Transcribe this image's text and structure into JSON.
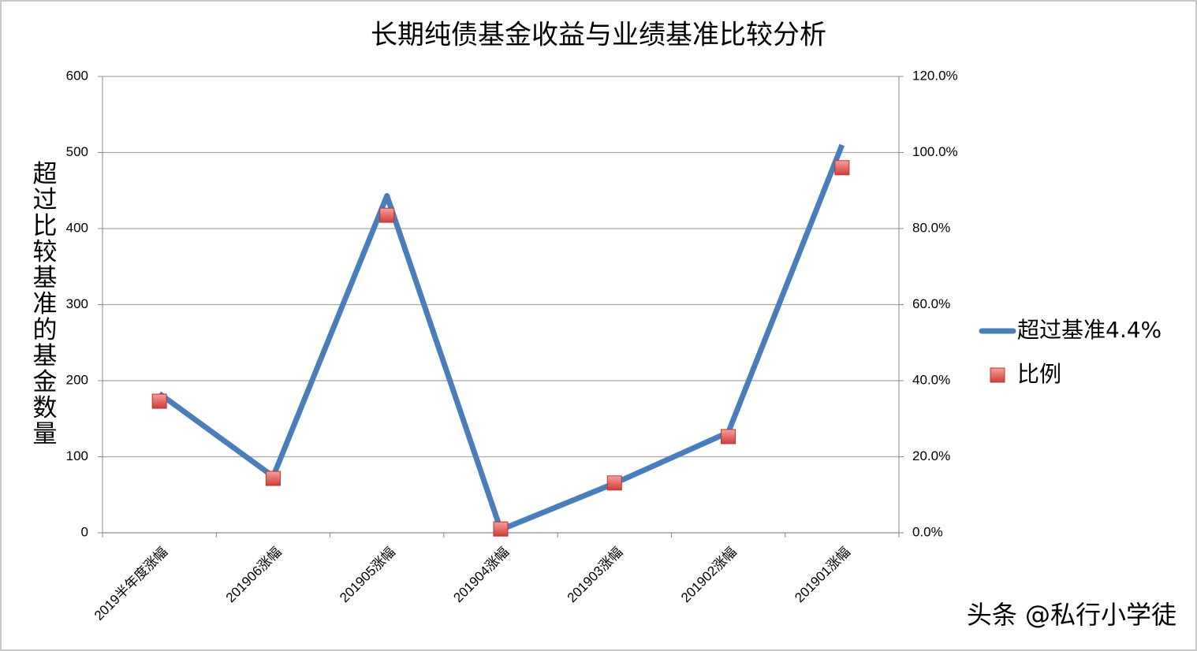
{
  "chart_data": {
    "type": "line",
    "title": "长期纯债基金收益与业绩基准比较分析",
    "y_label": "超过比较基准的基金数量",
    "categories": [
      "2019半年度涨幅",
      "201906涨幅",
      "201905涨幅",
      "201904涨幅",
      "201903涨幅",
      "201902涨幅",
      "201901涨幅"
    ],
    "series": [
      {
        "name": "超过基准4.4%",
        "color": "#4a7ebb",
        "values": [
          183,
          74,
          443,
          4,
          65,
          132,
          510
        ]
      },
      {
        "name": "比例",
        "color": "#e0504c",
        "axis": "y2",
        "marker_only": true,
        "values": [
          34.6,
          14.3,
          83.5,
          1.0,
          13.1,
          25.3,
          96.0
        ]
      }
    ],
    "ylim": [
      0,
      600
    ],
    "yticks": [
      0,
      100,
      200,
      300,
      400,
      500,
      600
    ],
    "y2lim": [
      0,
      120
    ],
    "y2ticks": [
      {
        "value": 0,
        "label": "0.0%"
      },
      {
        "value": 20,
        "label": "20.0%"
      },
      {
        "value": 40,
        "label": "40.0%"
      },
      {
        "value": 60,
        "label": "60.0%"
      },
      {
        "value": 80,
        "label": "80.0%"
      },
      {
        "value": 100,
        "label": "100.0%"
      },
      {
        "value": 120,
        "label": "120.0%"
      }
    ],
    "grid": true,
    "legend": "right",
    "watermark": "头条 @私行小学徒"
  }
}
